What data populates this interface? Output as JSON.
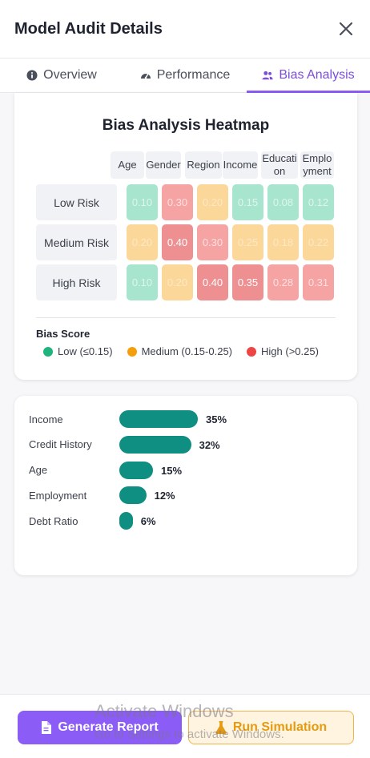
{
  "header": {
    "title": "Model Audit Details"
  },
  "tabs": [
    {
      "label": "Overview",
      "icon": "info-icon"
    },
    {
      "label": "Performance",
      "icon": "gauge-icon"
    },
    {
      "label": "Bias Analysis",
      "icon": "users-icon",
      "active": true
    }
  ],
  "heatmap": {
    "title": "Bias Analysis Heatmap",
    "columns": [
      "Age",
      "Gender",
      "Region",
      "Income",
      "Education",
      "Employment"
    ],
    "rows": [
      {
        "label": "Low Risk",
        "values": [
          "0.10",
          "0.30",
          "0.20",
          "0.15",
          "0.08",
          "0.12"
        ]
      },
      {
        "label": "Medium Risk",
        "values": [
          "0.20",
          "0.40",
          "0.30",
          "0.25",
          "0.18",
          "0.22"
        ]
      },
      {
        "label": "High Risk",
        "values": [
          "0.10",
          "0.20",
          "0.40",
          "0.35",
          "0.28",
          "0.31"
        ]
      }
    ],
    "legend_title": "Bias Score",
    "legend": [
      {
        "label": "Low (≤0.15)",
        "color": "#1fb37d"
      },
      {
        "label": "Medium (0.15-0.25)",
        "color": "#f59e0b"
      },
      {
        "label": "High (>0.25)",
        "color": "#ef4444"
      }
    ]
  },
  "chart_data": {
    "type": "bar",
    "categories": [
      "Income",
      "Credit History",
      "Age",
      "Employment",
      "Debt Ratio"
    ],
    "values": [
      35,
      32,
      15,
      12,
      6
    ],
    "value_labels": [
      "35%",
      "32%",
      "15%",
      "12%",
      "6%"
    ],
    "color": "#0e8f82"
  },
  "footer": {
    "primary_label": "Generate Report",
    "secondary_label": "Run Simulation"
  },
  "watermark": {
    "line1": "Activate Windows",
    "line2": "Go to Settings to activate Windows."
  }
}
